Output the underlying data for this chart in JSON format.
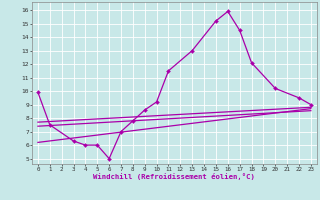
{
  "bg_color": "#c8e8e8",
  "grid_color": "#ffffff",
  "line_color": "#aa00aa",
  "x_ticks": [
    0,
    1,
    2,
    3,
    4,
    5,
    6,
    7,
    8,
    9,
    10,
    11,
    12,
    13,
    14,
    15,
    16,
    17,
    18,
    19,
    20,
    21,
    22,
    23
  ],
  "y_ticks": [
    5,
    6,
    7,
    8,
    9,
    10,
    11,
    12,
    13,
    14,
    15,
    16
  ],
  "ylim": [
    4.6,
    16.6
  ],
  "xlim": [
    -0.5,
    23.5
  ],
  "xlabel": "Windchill (Refroidissement éolien,°C)",
  "series_main_x": [
    0,
    1,
    3,
    4,
    5,
    6,
    7,
    8,
    9,
    10,
    11,
    13,
    15,
    16,
    17,
    18,
    20,
    22,
    23
  ],
  "series_main_y": [
    9.9,
    7.5,
    6.3,
    6.0,
    6.0,
    5.0,
    7.0,
    7.8,
    8.6,
    9.2,
    11.5,
    13.0,
    15.2,
    15.9,
    14.5,
    12.1,
    10.2,
    9.5,
    9.0
  ],
  "trend1_x": [
    0,
    23
  ],
  "trend1_y": [
    7.7,
    8.8
  ],
  "trend2_x": [
    0,
    23
  ],
  "trend2_y": [
    7.4,
    8.55
  ],
  "trend3_x": [
    0,
    23
  ],
  "trend3_y": [
    6.2,
    8.7
  ]
}
